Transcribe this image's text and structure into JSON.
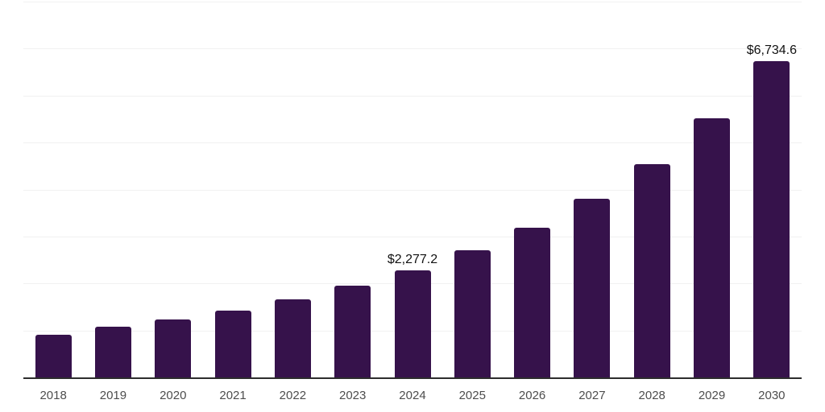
{
  "chart_data": {
    "type": "bar",
    "title": "",
    "xlabel": "",
    "ylabel": "",
    "categories": [
      "2018",
      "2019",
      "2020",
      "2021",
      "2022",
      "2023",
      "2024",
      "2025",
      "2026",
      "2027",
      "2028",
      "2029",
      "2030"
    ],
    "values": [
      900,
      1080,
      1230,
      1425,
      1655,
      1950,
      2277.2,
      2700,
      3180,
      3805,
      4545,
      5510,
      6734.6
    ],
    "data_labels": [
      "",
      "",
      "",
      "",
      "",
      "",
      "$2,277.2",
      "",
      "",
      "",
      "",
      "",
      "$6,734.6"
    ],
    "ylim": [
      0,
      8000
    ],
    "gridline_interval": 1000,
    "grid": true,
    "legend_position": "none",
    "y_axis_labels_visible": false,
    "colors": {
      "bar_fill": "#36124B",
      "gridline": "#f1f1f1",
      "axis_line": "#2d2d2d",
      "tick_label": "#4d4d4d",
      "data_label": "#121212",
      "background": "#ffffff"
    }
  }
}
